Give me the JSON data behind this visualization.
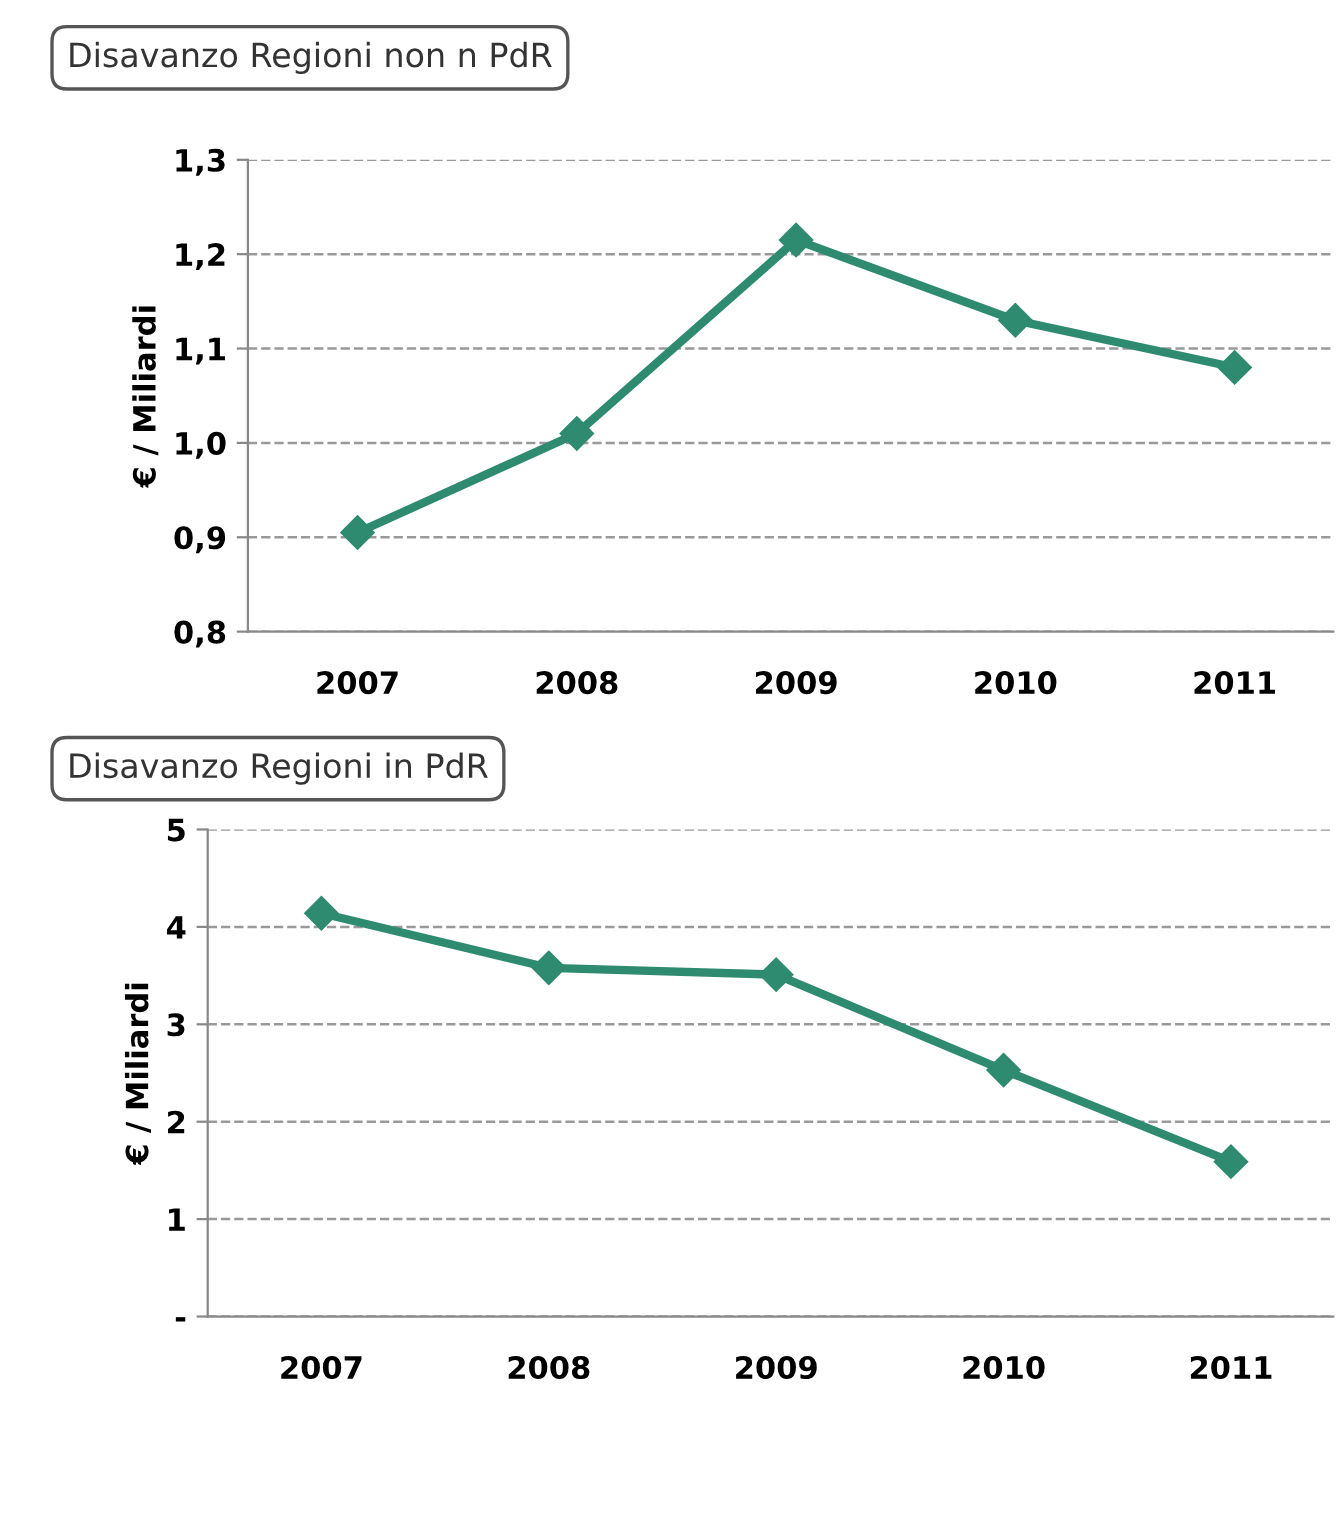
{
  "chart_data": [
    {
      "type": "line",
      "title": "Disavanzo Regioni non n PdR",
      "ylabel": "€ / Miliardi",
      "categories": [
        "2007",
        "2008",
        "2009",
        "2010",
        "2011"
      ],
      "series": [
        {
          "color": "#2e8b6f",
          "values": [
            0.905,
            1.01,
            1.215,
            1.13,
            1.08
          ]
        }
      ],
      "ylim": [
        0.8,
        1.3
      ],
      "yticks": [
        {
          "value": 0.8,
          "label": "0,8"
        },
        {
          "value": 0.9,
          "label": "0,9"
        },
        {
          "value": 1.0,
          "label": "1,0"
        },
        {
          "value": 1.1,
          "label": "1,1"
        },
        {
          "value": 1.2,
          "label": "1,2"
        },
        {
          "value": 1.3,
          "label": "1,3"
        }
      ],
      "grid": "y",
      "marker": "diamond",
      "line_style": "solid"
    },
    {
      "type": "line",
      "title": "Disavanzo Regioni in PdR",
      "ylabel": "€ / Miliardi",
      "categories": [
        "2007",
        "2008",
        "2009",
        "2010",
        "2011"
      ],
      "series": [
        {
          "color": "#2e8b6f",
          "values": [
            4.14,
            3.58,
            3.51,
            2.53,
            1.59
          ]
        }
      ],
      "ylim": [
        0,
        5
      ],
      "yticks": [
        {
          "value": 0,
          "label": "-"
        },
        1,
        2,
        3,
        4,
        5
      ],
      "grid": "y",
      "marker": "diamond",
      "line_style": "solid"
    }
  ]
}
